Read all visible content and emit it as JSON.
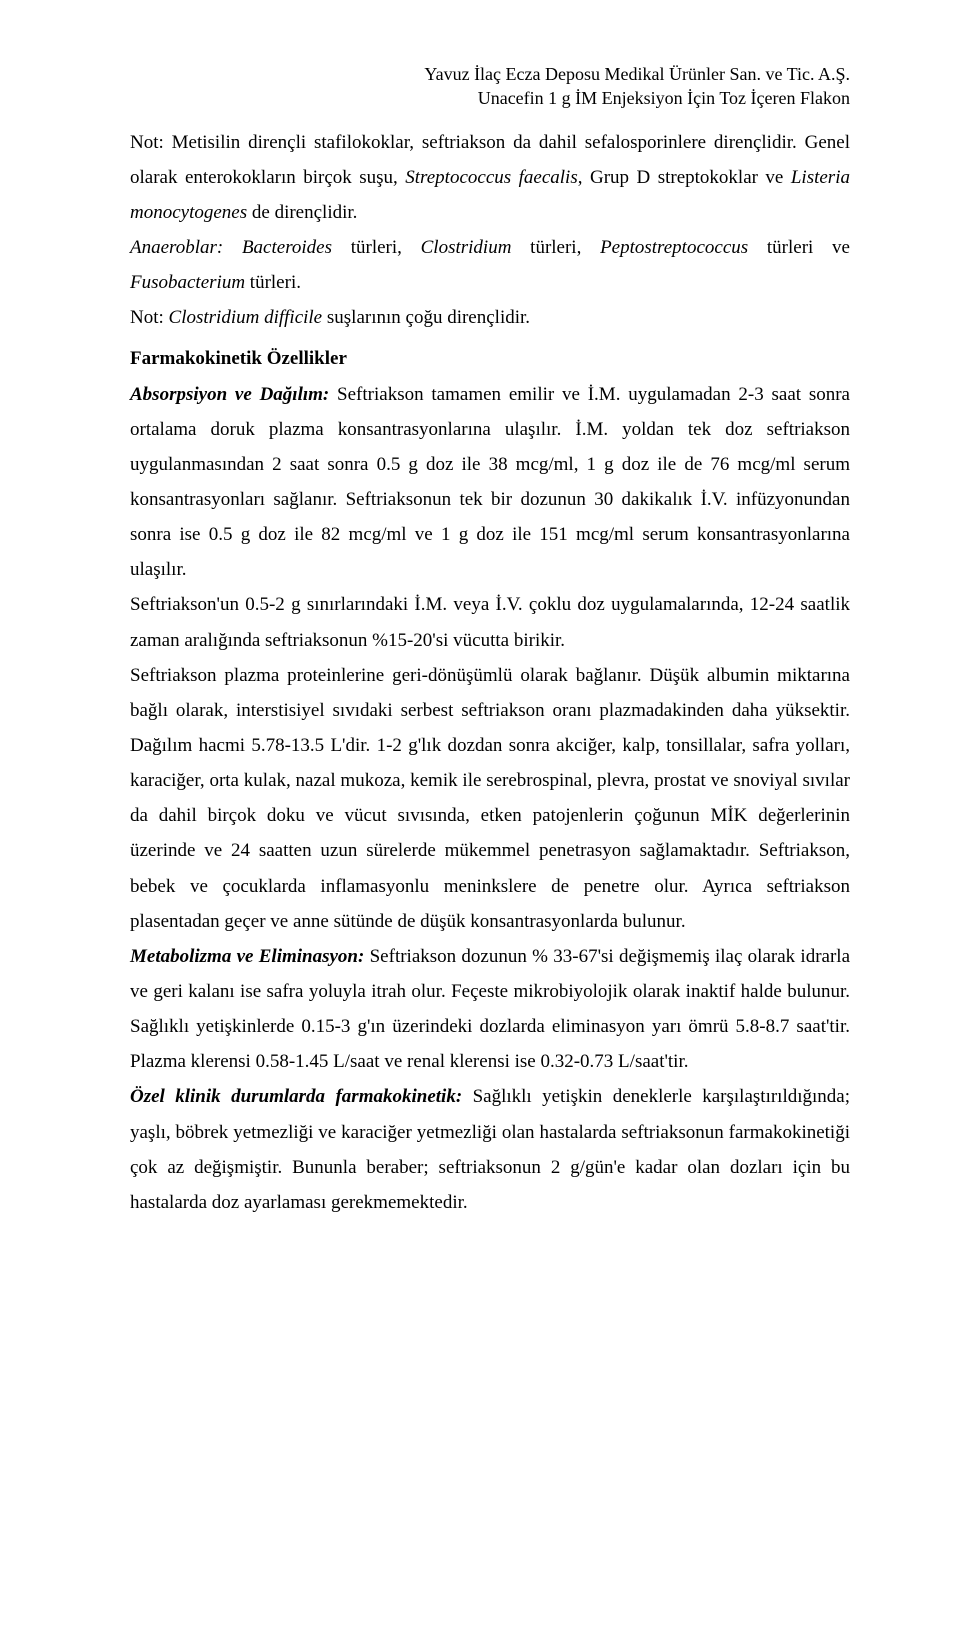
{
  "header": {
    "line1": "Yavuz İlaç Ecza Deposu Medikal Ürünler San. ve Tic. A.Ş.",
    "line2": "Unacefin 1 g İM Enjeksiyon İçin Toz İçeren Flakon"
  },
  "p1_a": "Not: Metisilin dirençli stafilokoklar, seftriakson da dahil sefalosporinlere dirençlidir. Genel olarak enterokokların birçok suşu, ",
  "p1_b": "Streptococcus faecalis",
  "p1_c": ", Grup D streptokoklar ve ",
  "p1_d": "Listeria monocytogenes",
  "p1_e": " de dirençlidir.",
  "p2_a": "Anaeroblar: Bacteroides",
  "p2_b": " türleri, ",
  "p2_c": "Clostridium",
  "p2_d": " türleri, ",
  "p2_e": "Peptostreptococcus",
  "p2_f": " türleri ve ",
  "p2_g": "Fusobacterium",
  "p2_h": " türleri.",
  "p3_a": "Not: ",
  "p3_b": "Clostridium difficile",
  "p3_c": " suşlarının çoğu dirençlidir.",
  "section_title": "Farmakokinetik Özellikler",
  "p4_a": "Absorpsiyon ve Dağılım:",
  "p4_b": " Seftriakson tamamen emilir ve İ.M. uygulamadan 2-3 saat sonra ortalama doruk plazma konsantrasyonlarına ulaşılır. İ.M. yoldan tek doz seftriakson uygulanmasından 2 saat sonra 0.5 g doz ile 38 mcg/ml, 1 g doz ile de 76 mcg/ml serum konsantrasyonları sağlanır. Seftriaksonun tek bir dozunun 30 dakikalık İ.V. infüzyonundan sonra ise 0.5 g doz ile 82 mcg/ml ve 1 g doz ile 151 mcg/ml serum konsantrasyonlarına ulaşılır.",
  "p5": "Seftriakson'un 0.5-2 g sınırlarındaki İ.M. veya İ.V. çoklu doz uygulamalarında, 12-24 saatlik zaman aralığında seftriaksonun %15-20'si vücutta birikir.",
  "p6": "Seftriakson plazma proteinlerine geri-dönüşümlü olarak bağlanır. Düşük albumin miktarına bağlı olarak, interstisiyel sıvıdaki serbest seftriakson oranı plazmadakinden daha yüksektir. Dağılım hacmi 5.78-13.5 L'dir. 1-2 g'lık dozdan sonra akciğer, kalp, tonsillalar, safra yolları, karaciğer, orta kulak, nazal mukoza, kemik ile serebrospinal, plevra, prostat ve snoviyal sıvılar da dahil birçok doku ve vücut sıvısında, etken patojenlerin çoğunun MİK değerlerinin üzerinde ve 24 saatten uzun sürelerde mükemmel penetrasyon sağlamaktadır. Seftriakson, bebek ve çocuklarda inflamasyonlu meninkslere de penetre olur. Ayrıca seftriakson plasentadan geçer ve anne sütünde de düşük konsantrasyonlarda bulunur.",
  "p7_a": "Metabolizma ve Eliminasyon:",
  "p7_b": " Seftriakson dozunun % 33-67'si değişmemiş ilaç olarak idrarla ve geri kalanı ise safra yoluyla itrah olur. Feçeste mikrobiyolojik olarak inaktif halde bulunur. Sağlıklı yetişkinlerde 0.15-3 g'ın üzerindeki dozlarda eliminasyon yarı ömrü 5.8-8.7 saat'tir. Plazma klerensi 0.58-1.45 L/saat ve renal klerensi ise 0.32-0.73 L/saat'tir.",
  "p8_a": "Özel klinik durumlarda farmakokinetik:",
  "p8_b": " Sağlıklı yetişkin deneklerle karşılaştırıldığında; yaşlı, böbrek yetmezliği ve karaciğer yetmezliği olan hastalarda seftriaksonun farmakokinetiği çok az değişmiştir. Bununla beraber; seftriaksonun 2 g/gün'e kadar olan dozları için bu hastalarda doz ayarlaması gerekmemektedir."
}
